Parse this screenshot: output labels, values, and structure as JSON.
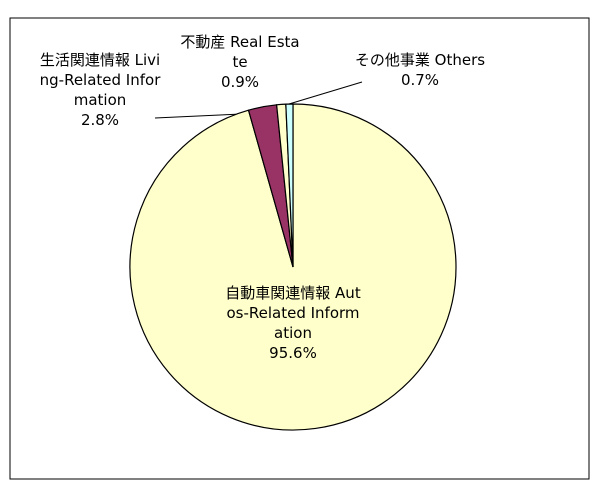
{
  "chart_data": {
    "type": "pie",
    "categories": [
      "自動車関連情報 Autos-Related Information",
      "生活関連情報 Living-Related Information",
      "不動産 Real Estate",
      "その他事業 Others"
    ],
    "values": [
      95.6,
      2.8,
      0.9,
      0.7
    ],
    "value_labels": [
      "95.6%",
      "2.8%",
      "0.9%",
      "0.7%"
    ],
    "colors": [
      "#ffffcc",
      "#993366",
      "#ffffcc",
      "#ccffff"
    ]
  }
}
